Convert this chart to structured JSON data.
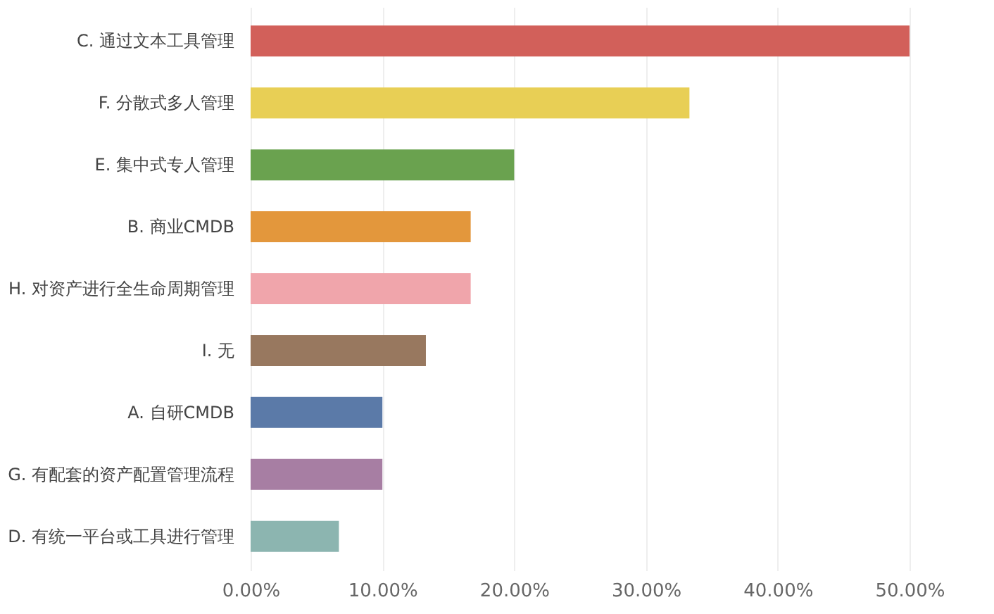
{
  "chart_data": {
    "type": "bar",
    "orientation": "horizontal",
    "categories": [
      "C. 通过文本工具管理",
      "F. 分散式多人管理",
      "E. 集中式专人管理",
      "B. 商业CMDB",
      "H. 对资产进行全生命周期管理",
      "I. 无",
      "A. 自研CMDB",
      "G. 有配套的资产配置管理流程",
      "D. 有统一平台或工具进行管理"
    ],
    "values": [
      50,
      33.3,
      20,
      16.7,
      16.7,
      13.3,
      10,
      10,
      6.7
    ],
    "colors": [
      "#d2605a",
      "#e8cf55",
      "#6aa24f",
      "#e3973c",
      "#f0a5ab",
      "#98785f",
      "#5b7aa8",
      "#a77ea3",
      "#8cb5b0"
    ],
    "xlim": [
      0,
      50
    ],
    "xticks": [
      {
        "value": 0,
        "label": "0.00%"
      },
      {
        "value": 10,
        "label": "10.00%"
      },
      {
        "value": 20,
        "label": "20.00%"
      },
      {
        "value": 30,
        "label": "30.00%"
      },
      {
        "value": 40,
        "label": "40.00%"
      },
      {
        "value": 50,
        "label": "50.00%"
      }
    ],
    "grid": "x"
  }
}
